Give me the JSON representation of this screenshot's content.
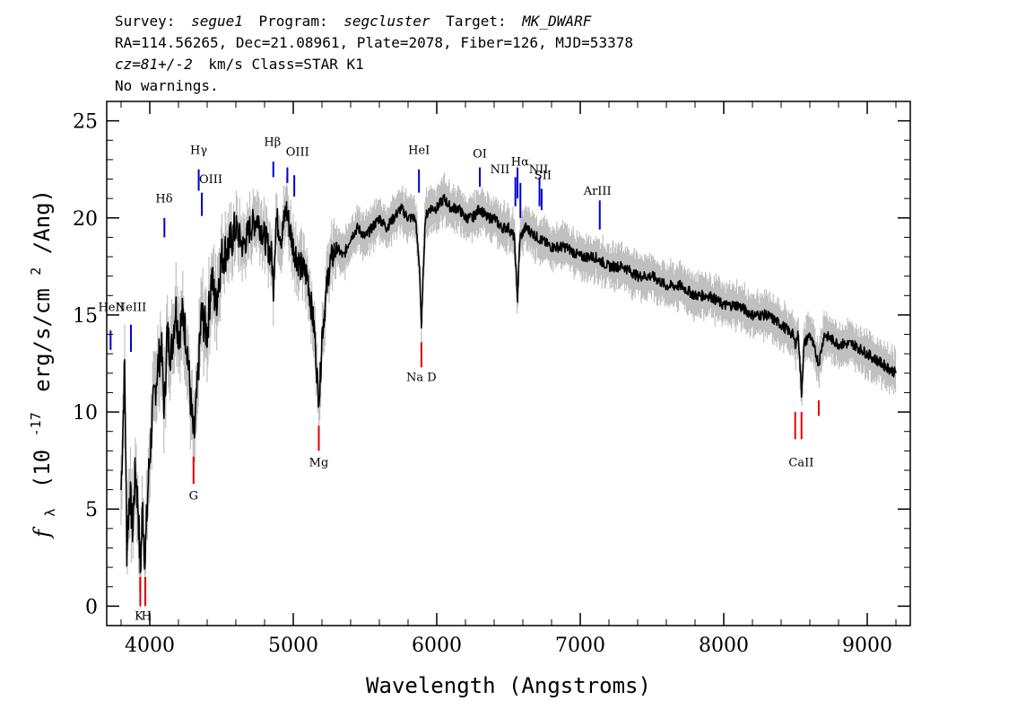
{
  "header": {
    "line1": {
      "survey_label": "Survey:",
      "survey": "segue1",
      "program_label": "Program:",
      "program": "segcluster",
      "target_label": "Target:",
      "target": "MK_DWARF"
    },
    "line2": "RA=114.56265, Dec=21.08961, Plate=2078, Fiber=126, MJD=53378",
    "line3": {
      "cz": "cz=81+/-2",
      "rest": "km/s Class=STAR K1"
    },
    "line4": "No warnings."
  },
  "chart_data": {
    "type": "line",
    "title": "",
    "xlabel": "Wavelength (Angstroms)",
    "ylabel": {
      "f": "f",
      "sub": "λ",
      "open": "(10",
      "exp": "-17",
      "unit": "erg/s/cm",
      "sq": "2",
      "close": "/Ang)"
    },
    "xlim": [
      3700,
      9300
    ],
    "ylim": [
      -1,
      26
    ],
    "x_ticks": [
      4000,
      5000,
      6000,
      7000,
      8000,
      9000
    ],
    "y_ticks": [
      0,
      5,
      10,
      15,
      20,
      25
    ],
    "colors": {
      "flux": "#000000",
      "error": "#c0c0c0",
      "emission": "#0000cc",
      "absorption": "#dd0000"
    },
    "series": [
      {
        "role": "flux",
        "points": [
          [
            3800,
            6
          ],
          [
            3825,
            12.5
          ],
          [
            3840,
            3
          ],
          [
            3860,
            6
          ],
          [
            3880,
            4
          ],
          [
            3900,
            7
          ],
          [
            3920,
            5
          ],
          [
            3934,
            1.8
          ],
          [
            3950,
            5
          ],
          [
            3968,
            2.5
          ],
          [
            3990,
            6.5
          ],
          [
            4020,
            10
          ],
          [
            4050,
            12
          ],
          [
            4080,
            13.5
          ],
          [
            4102,
            10
          ],
          [
            4120,
            14
          ],
          [
            4150,
            13
          ],
          [
            4180,
            15.5
          ],
          [
            4200,
            14
          ],
          [
            4230,
            15
          ],
          [
            4260,
            13.5
          ],
          [
            4290,
            10
          ],
          [
            4308,
            8.5
          ],
          [
            4330,
            11
          ],
          [
            4360,
            15
          ],
          [
            4400,
            14
          ],
          [
            4430,
            17
          ],
          [
            4460,
            15.5
          ],
          [
            4500,
            18
          ],
          [
            4550,
            18.5
          ],
          [
            4600,
            19.5
          ],
          [
            4650,
            18.5
          ],
          [
            4700,
            19.5
          ],
          [
            4750,
            20
          ],
          [
            4800,
            19
          ],
          [
            4850,
            18
          ],
          [
            4861,
            16.5
          ],
          [
            4880,
            20
          ],
          [
            4920,
            19
          ],
          [
            4950,
            20.5
          ],
          [
            5000,
            18.5
          ],
          [
            5050,
            17.5
          ],
          [
            5100,
            17
          ],
          [
            5150,
            14
          ],
          [
            5172,
            11
          ],
          [
            5185,
            11.2
          ],
          [
            5200,
            14
          ],
          [
            5250,
            17.5
          ],
          [
            5300,
            18.5
          ],
          [
            5350,
            18
          ],
          [
            5400,
            19
          ],
          [
            5450,
            19.5
          ],
          [
            5500,
            19
          ],
          [
            5550,
            19.5
          ],
          [
            5600,
            20
          ],
          [
            5650,
            19.5
          ],
          [
            5700,
            20
          ],
          [
            5750,
            20.5
          ],
          [
            5800,
            20
          ],
          [
            5850,
            20
          ],
          [
            5880,
            17.5
          ],
          [
            5893,
            14.2
          ],
          [
            5900,
            16
          ],
          [
            5920,
            20
          ],
          [
            5950,
            20.5
          ],
          [
            6000,
            20.5
          ],
          [
            6050,
            21
          ],
          [
            6100,
            20.5
          ],
          [
            6150,
            20.5
          ],
          [
            6200,
            20
          ],
          [
            6250,
            20
          ],
          [
            6300,
            20.5
          ],
          [
            6350,
            20
          ],
          [
            6400,
            20
          ],
          [
            6450,
            19.5
          ],
          [
            6500,
            19.5
          ],
          [
            6540,
            19
          ],
          [
            6563,
            15.8
          ],
          [
            6580,
            19
          ],
          [
            6620,
            19.5
          ],
          [
            6700,
            19
          ],
          [
            6800,
            18.5
          ],
          [
            6900,
            18.5
          ],
          [
            7000,
            18
          ],
          [
            7100,
            18
          ],
          [
            7200,
            17.5
          ],
          [
            7300,
            17.5
          ],
          [
            7400,
            17
          ],
          [
            7500,
            17
          ],
          [
            7600,
            16.5
          ],
          [
            7700,
            16.5
          ],
          [
            7800,
            16
          ],
          [
            7900,
            16
          ],
          [
            8000,
            15.5
          ],
          [
            8100,
            15.5
          ],
          [
            8200,
            15
          ],
          [
            8300,
            15
          ],
          [
            8400,
            14.5
          ],
          [
            8480,
            14
          ],
          [
            8498,
            13.5
          ],
          [
            8520,
            14
          ],
          [
            8542,
            11
          ],
          [
            8560,
            13.5
          ],
          [
            8600,
            14
          ],
          [
            8662,
            12.5
          ],
          [
            8700,
            14
          ],
          [
            8800,
            13.5
          ],
          [
            8900,
            13.5
          ],
          [
            9000,
            13
          ],
          [
            9100,
            12.5
          ],
          [
            9200,
            12
          ]
        ]
      }
    ],
    "emission_lines": [
      {
        "label": "HeII",
        "wave": 3727,
        "y_top": 14.2,
        "y_bot": 13.2,
        "lx": 3732,
        "ly": 15.2
      },
      {
        "label": "NeIII",
        "wave": 3869,
        "y_top": 14.5,
        "y_bot": 13.1,
        "lx": 3869,
        "ly": 15.2
      },
      {
        "label": "Hδ",
        "wave": 4102,
        "y_top": 20.0,
        "y_bot": 19.0,
        "lx": 4100,
        "ly": 20.8
      },
      {
        "label": "Hγ",
        "wave": 4341,
        "y_top": 22.5,
        "y_bot": 21.4,
        "lx": 4341,
        "ly": 23.3
      },
      {
        "label": "OIII",
        "wave": 4363,
        "y_top": 21.3,
        "y_bot": 20.1,
        "lx": 4425,
        "ly": 21.8
      },
      {
        "label": "Hβ",
        "wave": 4861,
        "y_top": 22.9,
        "y_bot": 22.1,
        "lx": 4855,
        "ly": 23.7
      },
      {
        "label": "OIII",
        "wave": 4959,
        "y_top": 22.6,
        "y_bot": 21.8,
        "lx": 5030,
        "ly": 23.2
      },
      {
        "label": "OIII",
        "wave": 5007,
        "y_top": 22.2,
        "y_bot": 21.1
      },
      {
        "label": "HeI",
        "wave": 5876,
        "y_top": 22.5,
        "y_bot": 21.3,
        "lx": 5876,
        "ly": 23.3
      },
      {
        "label": "OI",
        "wave": 6300,
        "y_top": 22.6,
        "y_bot": 21.6,
        "lx": 6300,
        "ly": 23.1
      },
      {
        "label": "NII",
        "wave": 6548,
        "y_top": 22.1,
        "y_bot": 20.6,
        "lx": 6440,
        "ly": 22.3
      },
      {
        "label": "Hα",
        "wave": 6563,
        "y_top": 22.6,
        "y_bot": 21.0,
        "lx": 6580,
        "ly": 22.7
      },
      {
        "label": "NII",
        "wave": 6583,
        "y_top": 21.8,
        "y_bot": 20.0
      },
      {
        "label": "NII",
        "wave": 6716,
        "y_top": 22.1,
        "y_bot": 20.6,
        "lx": 6710,
        "ly": 22.3
      },
      {
        "label": "SII",
        "wave": 6731,
        "y_top": 21.5,
        "y_bot": 20.4,
        "lx": 6740,
        "ly": 22.0
      },
      {
        "label": "ArIII",
        "wave": 7136,
        "y_top": 20.9,
        "y_bot": 19.4,
        "lx": 7120,
        "ly": 21.2
      }
    ],
    "absorption_lines": [
      {
        "label": "K",
        "wave": 3934,
        "y_top": 1.5,
        "y_bot": 0.0,
        "lx": 3925,
        "ly": -0.7
      },
      {
        "label": "H",
        "wave": 3969,
        "y_top": 1.5,
        "y_bot": 0.0,
        "lx": 3977,
        "ly": -0.7
      },
      {
        "label": "G",
        "wave": 4305,
        "y_top": 7.7,
        "y_bot": 6.3,
        "lx": 4305,
        "ly": 5.5
      },
      {
        "label": "Mg",
        "wave": 5178,
        "y_top": 9.3,
        "y_bot": 8.0,
        "lx": 5178,
        "ly": 7.2
      },
      {
        "label": "Na D",
        "wave": 5893,
        "y_top": 13.6,
        "y_bot": 12.3,
        "lx": 5893,
        "ly": 11.6
      },
      {
        "label": "CaII",
        "wave": 8498,
        "y_top": 10.0,
        "y_bot": 8.6,
        "lx": 8540,
        "ly": 7.2
      },
      {
        "label": "CaII",
        "wave": 8542,
        "y_top": 10.0,
        "y_bot": 8.6
      },
      {
        "label": "CaII",
        "wave": 8662,
        "y_top": 10.6,
        "y_bot": 9.8
      }
    ]
  }
}
